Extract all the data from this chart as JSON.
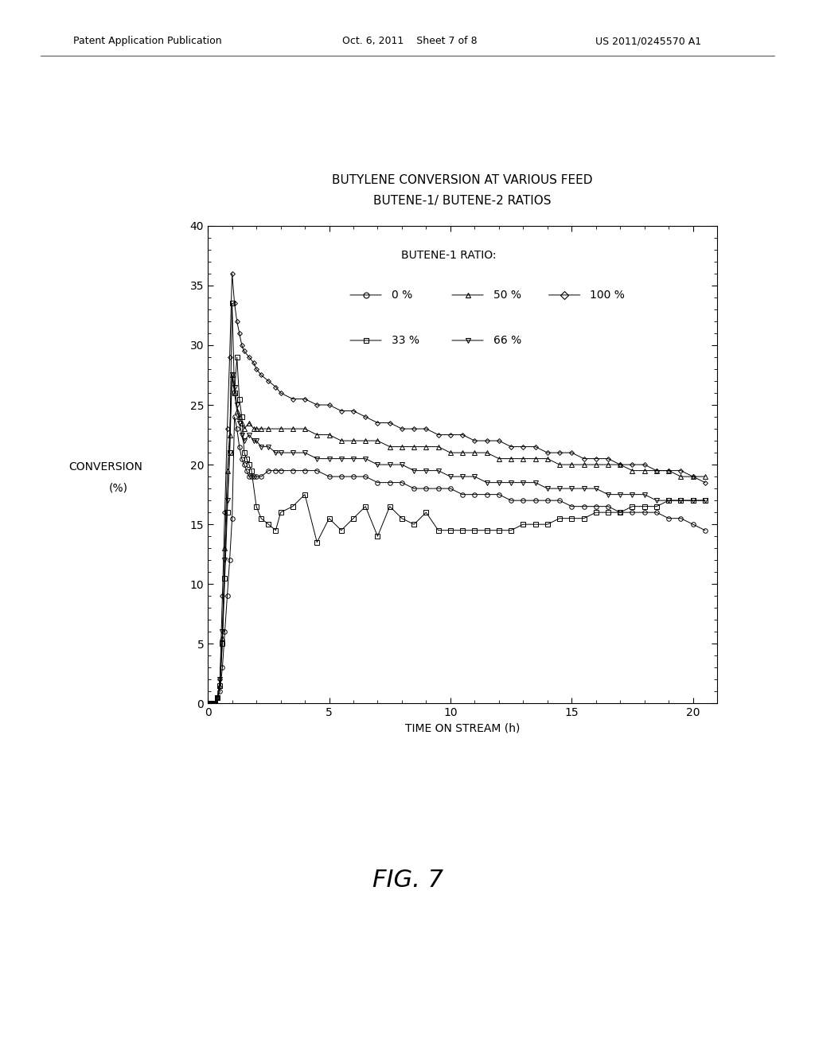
{
  "title_line1": "BUTYLENE CONVERSION AT VARIOUS FEED",
  "title_line2": "BUTENE-1/ BUTENE-2 RATIOS",
  "xlabel": "TIME ON STREAM (h)",
  "ylabel": "CONVERSION\n(%)",
  "xlim": [
    0,
    21
  ],
  "ylim": [
    0,
    40
  ],
  "xticks": [
    0,
    5,
    10,
    15,
    20
  ],
  "yticks": [
    0,
    5,
    10,
    15,
    20,
    25,
    30,
    35,
    40
  ],
  "fig_caption": "FIG. 7",
  "legend_title": "BUTENE-1 RATIO:",
  "header_left": "Patent Application Publication",
  "header_mid": "Oct. 6, 2011    Sheet 7 of 8",
  "header_right": "US 2011/0245570 A1",
  "series": [
    {
      "label": "0 %",
      "marker": "o",
      "markersize": 4,
      "x": [
        0.0,
        0.1,
        0.2,
        0.3,
        0.4,
        0.5,
        0.6,
        0.7,
        0.8,
        0.9,
        1.0,
        1.1,
        1.2,
        1.3,
        1.4,
        1.5,
        1.6,
        1.7,
        1.8,
        1.9,
        2.0,
        2.2,
        2.5,
        2.8,
        3.0,
        3.5,
        4.0,
        4.5,
        5.0,
        5.5,
        6.0,
        6.5,
        7.0,
        7.5,
        8.0,
        8.5,
        9.0,
        9.5,
        10.0,
        10.5,
        11.0,
        11.5,
        12.0,
        12.5,
        13.0,
        13.5,
        14.0,
        14.5,
        15.0,
        15.5,
        16.0,
        16.5,
        17.0,
        17.5,
        18.0,
        18.5,
        19.0,
        19.5,
        20.0,
        20.5
      ],
      "y": [
        0.0,
        0.0,
        0.0,
        0.0,
        0.5,
        1.0,
        3.0,
        6.0,
        9.0,
        12.0,
        15.5,
        24.0,
        23.0,
        21.5,
        20.5,
        20.0,
        19.5,
        19.0,
        19.0,
        19.0,
        19.0,
        19.0,
        19.5,
        19.5,
        19.5,
        19.5,
        19.5,
        19.5,
        19.0,
        19.0,
        19.0,
        19.0,
        18.5,
        18.5,
        18.5,
        18.0,
        18.0,
        18.0,
        18.0,
        17.5,
        17.5,
        17.5,
        17.5,
        17.0,
        17.0,
        17.0,
        17.0,
        17.0,
        16.5,
        16.5,
        16.5,
        16.5,
        16.0,
        16.0,
        16.0,
        16.0,
        15.5,
        15.5,
        15.0,
        14.5
      ]
    },
    {
      "label": "33 %",
      "marker": "s",
      "markersize": 4,
      "x": [
        0.0,
        0.1,
        0.2,
        0.3,
        0.4,
        0.5,
        0.6,
        0.7,
        0.8,
        0.9,
        1.0,
        1.1,
        1.2,
        1.3,
        1.4,
        1.5,
        1.6,
        1.7,
        1.8,
        2.0,
        2.2,
        2.5,
        2.8,
        3.0,
        3.5,
        4.0,
        4.5,
        5.0,
        5.5,
        6.0,
        6.5,
        7.0,
        7.5,
        8.0,
        8.5,
        9.0,
        9.5,
        10.0,
        10.5,
        11.0,
        11.5,
        12.0,
        12.5,
        13.0,
        13.5,
        14.0,
        14.5,
        15.0,
        15.5,
        16.0,
        16.5,
        17.0,
        17.5,
        18.0,
        18.5,
        19.0,
        19.5,
        20.0,
        20.5
      ],
      "y": [
        0.0,
        0.0,
        0.0,
        0.0,
        0.5,
        1.5,
        5.0,
        10.5,
        16.0,
        21.0,
        33.5,
        26.0,
        29.0,
        25.5,
        24.0,
        21.0,
        20.5,
        20.0,
        19.5,
        16.5,
        15.5,
        15.0,
        14.5,
        16.0,
        16.5,
        17.5,
        13.5,
        15.5,
        14.5,
        15.5,
        16.5,
        14.0,
        16.5,
        15.5,
        15.0,
        16.0,
        14.5,
        14.5,
        14.5,
        14.5,
        14.5,
        14.5,
        14.5,
        15.0,
        15.0,
        15.0,
        15.5,
        15.5,
        15.5,
        16.0,
        16.0,
        16.0,
        16.5,
        16.5,
        16.5,
        17.0,
        17.0,
        17.0,
        17.0
      ]
    },
    {
      "label": "50 %",
      "marker": "^",
      "markersize": 4,
      "x": [
        0.0,
        0.1,
        0.2,
        0.3,
        0.4,
        0.5,
        0.6,
        0.7,
        0.8,
        0.9,
        1.0,
        1.1,
        1.2,
        1.3,
        1.4,
        1.5,
        1.7,
        1.9,
        2.0,
        2.2,
        2.5,
        3.0,
        3.5,
        4.0,
        4.5,
        5.0,
        5.5,
        6.0,
        6.5,
        7.0,
        7.5,
        8.0,
        8.5,
        9.0,
        9.5,
        10.0,
        10.5,
        11.0,
        11.5,
        12.0,
        12.5,
        13.0,
        13.5,
        14.0,
        14.5,
        15.0,
        15.5,
        16.0,
        16.5,
        17.0,
        17.5,
        18.0,
        18.5,
        19.0,
        19.5,
        20.0,
        20.5
      ],
      "y": [
        0.0,
        0.0,
        0.0,
        0.0,
        0.5,
        1.5,
        5.5,
        13.0,
        19.5,
        22.5,
        27.5,
        26.0,
        24.5,
        24.0,
        23.5,
        23.0,
        23.5,
        23.0,
        23.0,
        23.0,
        23.0,
        23.0,
        23.0,
        23.0,
        22.5,
        22.5,
        22.0,
        22.0,
        22.0,
        22.0,
        21.5,
        21.5,
        21.5,
        21.5,
        21.5,
        21.0,
        21.0,
        21.0,
        21.0,
        20.5,
        20.5,
        20.5,
        20.5,
        20.5,
        20.0,
        20.0,
        20.0,
        20.0,
        20.0,
        20.0,
        19.5,
        19.5,
        19.5,
        19.5,
        19.0,
        19.0,
        19.0
      ]
    },
    {
      "label": "66 %",
      "marker": "v",
      "markersize": 4,
      "x": [
        0.0,
        0.1,
        0.2,
        0.3,
        0.4,
        0.5,
        0.6,
        0.7,
        0.8,
        0.9,
        1.0,
        1.1,
        1.2,
        1.3,
        1.4,
        1.5,
        1.7,
        1.9,
        2.0,
        2.2,
        2.5,
        2.8,
        3.0,
        3.5,
        4.0,
        4.5,
        5.0,
        5.5,
        6.0,
        6.5,
        7.0,
        7.5,
        8.0,
        8.5,
        9.0,
        9.5,
        10.0,
        10.5,
        11.0,
        11.5,
        12.0,
        12.5,
        13.0,
        13.5,
        14.0,
        14.5,
        15.0,
        15.5,
        16.0,
        16.5,
        17.0,
        17.5,
        18.0,
        18.5,
        19.0,
        19.5,
        20.0,
        20.5
      ],
      "y": [
        0.0,
        0.0,
        0.0,
        0.0,
        0.5,
        2.0,
        6.0,
        12.0,
        17.0,
        21.0,
        27.5,
        26.5,
        25.0,
        23.5,
        22.5,
        22.0,
        22.5,
        22.0,
        22.0,
        21.5,
        21.5,
        21.0,
        21.0,
        21.0,
        21.0,
        20.5,
        20.5,
        20.5,
        20.5,
        20.5,
        20.0,
        20.0,
        20.0,
        19.5,
        19.5,
        19.5,
        19.0,
        19.0,
        19.0,
        18.5,
        18.5,
        18.5,
        18.5,
        18.5,
        18.0,
        18.0,
        18.0,
        18.0,
        18.0,
        17.5,
        17.5,
        17.5,
        17.5,
        17.0,
        17.0,
        17.0,
        17.0,
        17.0
      ]
    },
    {
      "label": "100 %",
      "marker": "D",
      "markersize": 3,
      "x": [
        0.0,
        0.1,
        0.2,
        0.3,
        0.4,
        0.5,
        0.6,
        0.7,
        0.8,
        0.9,
        1.0,
        1.1,
        1.2,
        1.3,
        1.4,
        1.5,
        1.7,
        1.9,
        2.0,
        2.2,
        2.5,
        2.8,
        3.0,
        3.5,
        4.0,
        4.5,
        5.0,
        5.5,
        6.0,
        6.5,
        7.0,
        7.5,
        8.0,
        8.5,
        9.0,
        9.5,
        10.0,
        10.5,
        11.0,
        11.5,
        12.0,
        12.5,
        13.0,
        13.5,
        14.0,
        14.5,
        15.0,
        15.5,
        16.0,
        16.5,
        17.0,
        17.5,
        18.0,
        18.5,
        19.0,
        19.5,
        20.0,
        20.5
      ],
      "y": [
        0.0,
        0.0,
        0.0,
        0.0,
        0.5,
        2.0,
        9.0,
        16.0,
        23.0,
        29.0,
        36.0,
        33.5,
        32.0,
        31.0,
        30.0,
        29.5,
        29.0,
        28.5,
        28.0,
        27.5,
        27.0,
        26.5,
        26.0,
        25.5,
        25.5,
        25.0,
        25.0,
        24.5,
        24.5,
        24.0,
        23.5,
        23.5,
        23.0,
        23.0,
        23.0,
        22.5,
        22.5,
        22.5,
        22.0,
        22.0,
        22.0,
        21.5,
        21.5,
        21.5,
        21.0,
        21.0,
        21.0,
        20.5,
        20.5,
        20.5,
        20.0,
        20.0,
        20.0,
        19.5,
        19.5,
        19.5,
        19.0,
        18.5
      ]
    }
  ]
}
